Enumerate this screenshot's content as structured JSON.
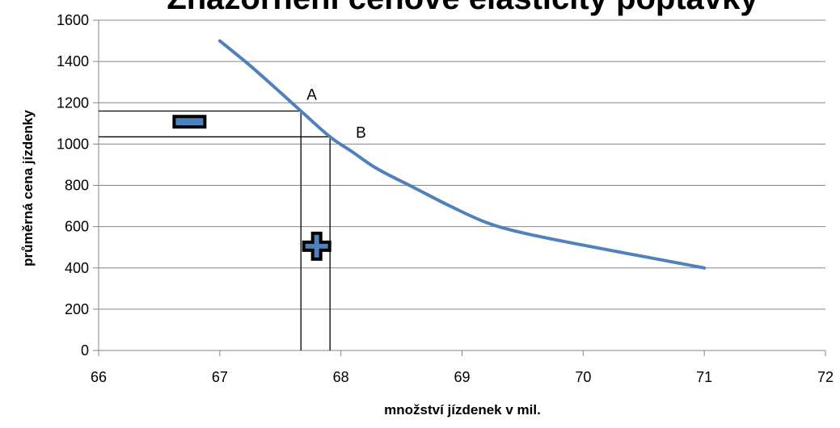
{
  "chart_data": {
    "type": "line",
    "title": "Znázornění cenové elasticity poptávky",
    "xlabel": "množství jízdenek v mil.",
    "ylabel": "průměrná cena jízdenky",
    "xlim": [
      66,
      72
    ],
    "ylim": [
      0,
      1600
    ],
    "x_ticks": [
      66,
      67,
      68,
      69,
      70,
      71,
      72
    ],
    "y_ticks": [
      0,
      200,
      400,
      600,
      800,
      1000,
      1200,
      1400,
      1600
    ],
    "grid": "horizontal",
    "series": [
      {
        "color": "#4f81bd",
        "points": [
          [
            67.0,
            1500
          ],
          [
            67.25,
            1380
          ],
          [
            67.5,
            1250
          ],
          [
            67.67,
            1160
          ],
          [
            67.91,
            1035
          ],
          [
            68.1,
            960
          ],
          [
            68.3,
            880
          ],
          [
            68.6,
            790
          ],
          [
            68.9,
            700
          ],
          [
            69.2,
            620
          ],
          [
            69.5,
            570
          ],
          [
            70.0,
            510
          ],
          [
            70.5,
            455
          ],
          [
            71.0,
            400
          ]
        ]
      }
    ],
    "annotations": {
      "point_a": {
        "label": "A",
        "x": 67.67,
        "y": 1160
      },
      "point_b": {
        "label": "B",
        "x": 67.91,
        "y": 1035
      },
      "minus_sign": {
        "x": 66.75,
        "y": 1110,
        "color": "#4f81bd"
      },
      "plus_sign": {
        "x": 67.8,
        "y": 505,
        "color": "#4f81bd"
      }
    }
  }
}
